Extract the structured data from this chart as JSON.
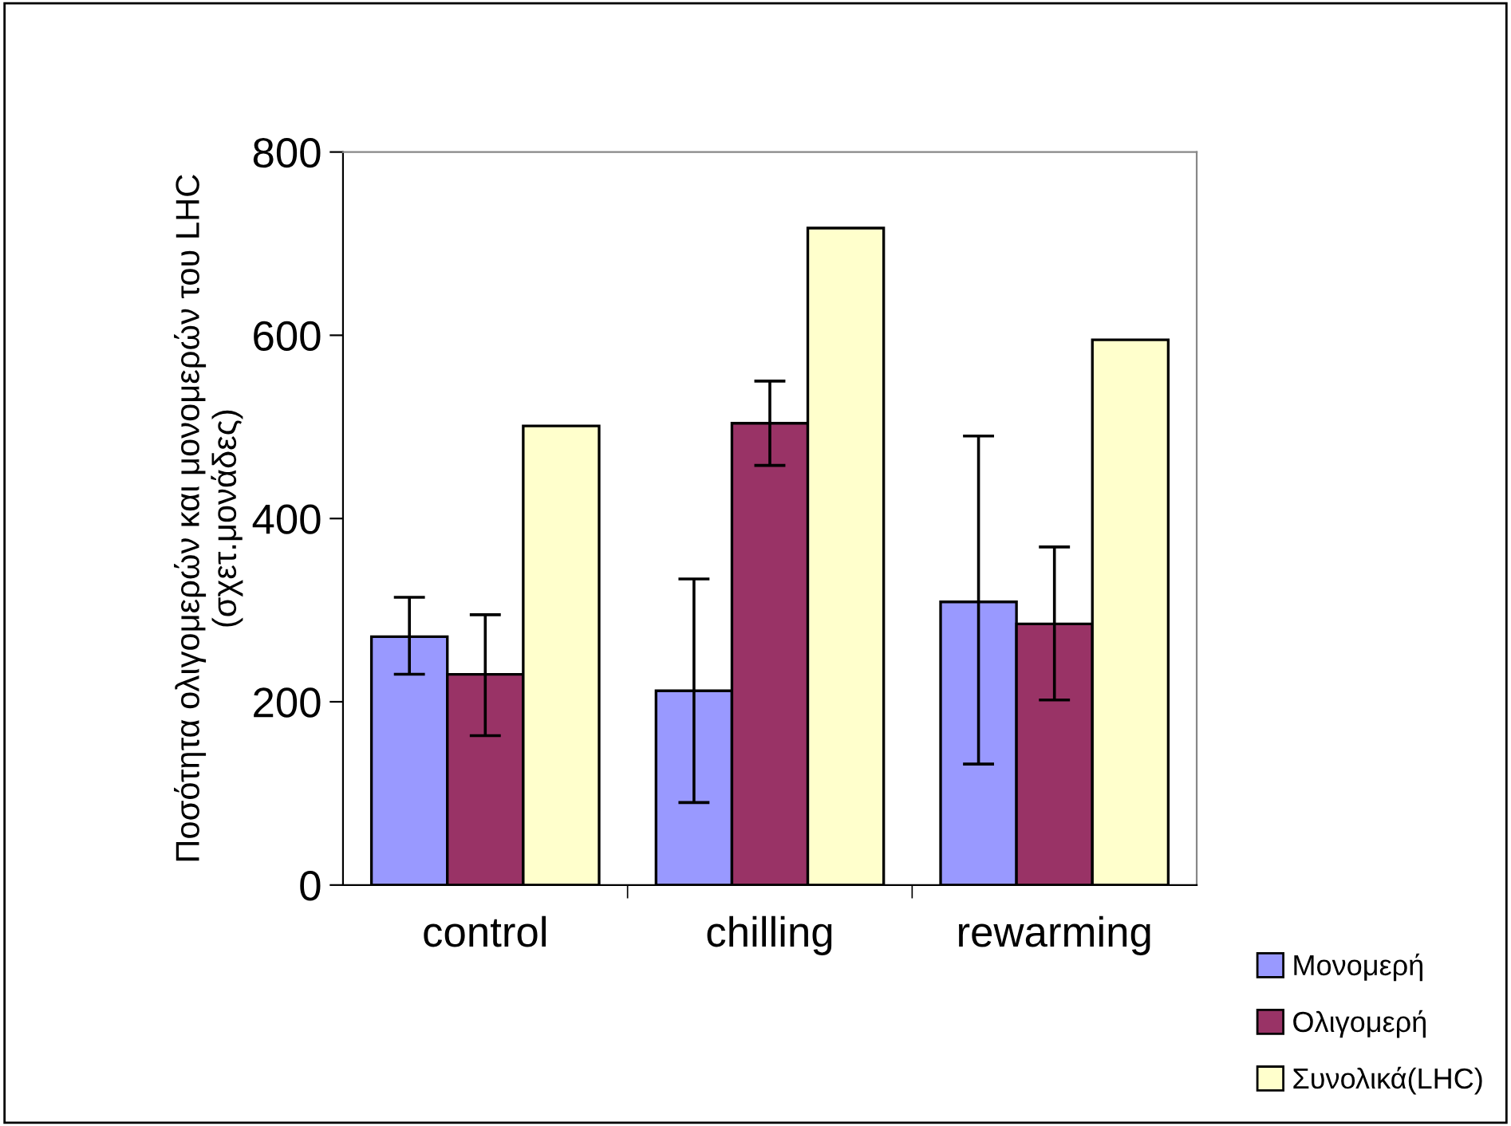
{
  "chart_data": {
    "type": "bar",
    "ylabel": "Ποσότητα ολιγομερών και μονομερών του LHC\n(σχετ.μονάδες)",
    "categories": [
      "control",
      "chilling",
      "rewarming"
    ],
    "series": [
      {
        "name": "Μονομερή",
        "color": "#9999ff",
        "values": [
          271,
          212,
          309
        ],
        "errors": [
          [
            230,
            314
          ],
          [
            90,
            334
          ],
          [
            132,
            490
          ]
        ]
      },
      {
        "name": "Ολιγομερή",
        "color": "#993366",
        "values": [
          230,
          504,
          285
        ],
        "errors": [
          [
            163,
            295
          ],
          [
            458,
            550
          ],
          [
            202,
            369
          ]
        ]
      },
      {
        "name": "Συνολικά(LHC)",
        "color": "#ffffcc",
        "values": [
          501,
          717,
          595
        ]
      }
    ],
    "ylim": [
      0,
      800
    ],
    "yticks": [
      0,
      200,
      400,
      600,
      800
    ],
    "grid": false,
    "legend": "bottom right"
  }
}
